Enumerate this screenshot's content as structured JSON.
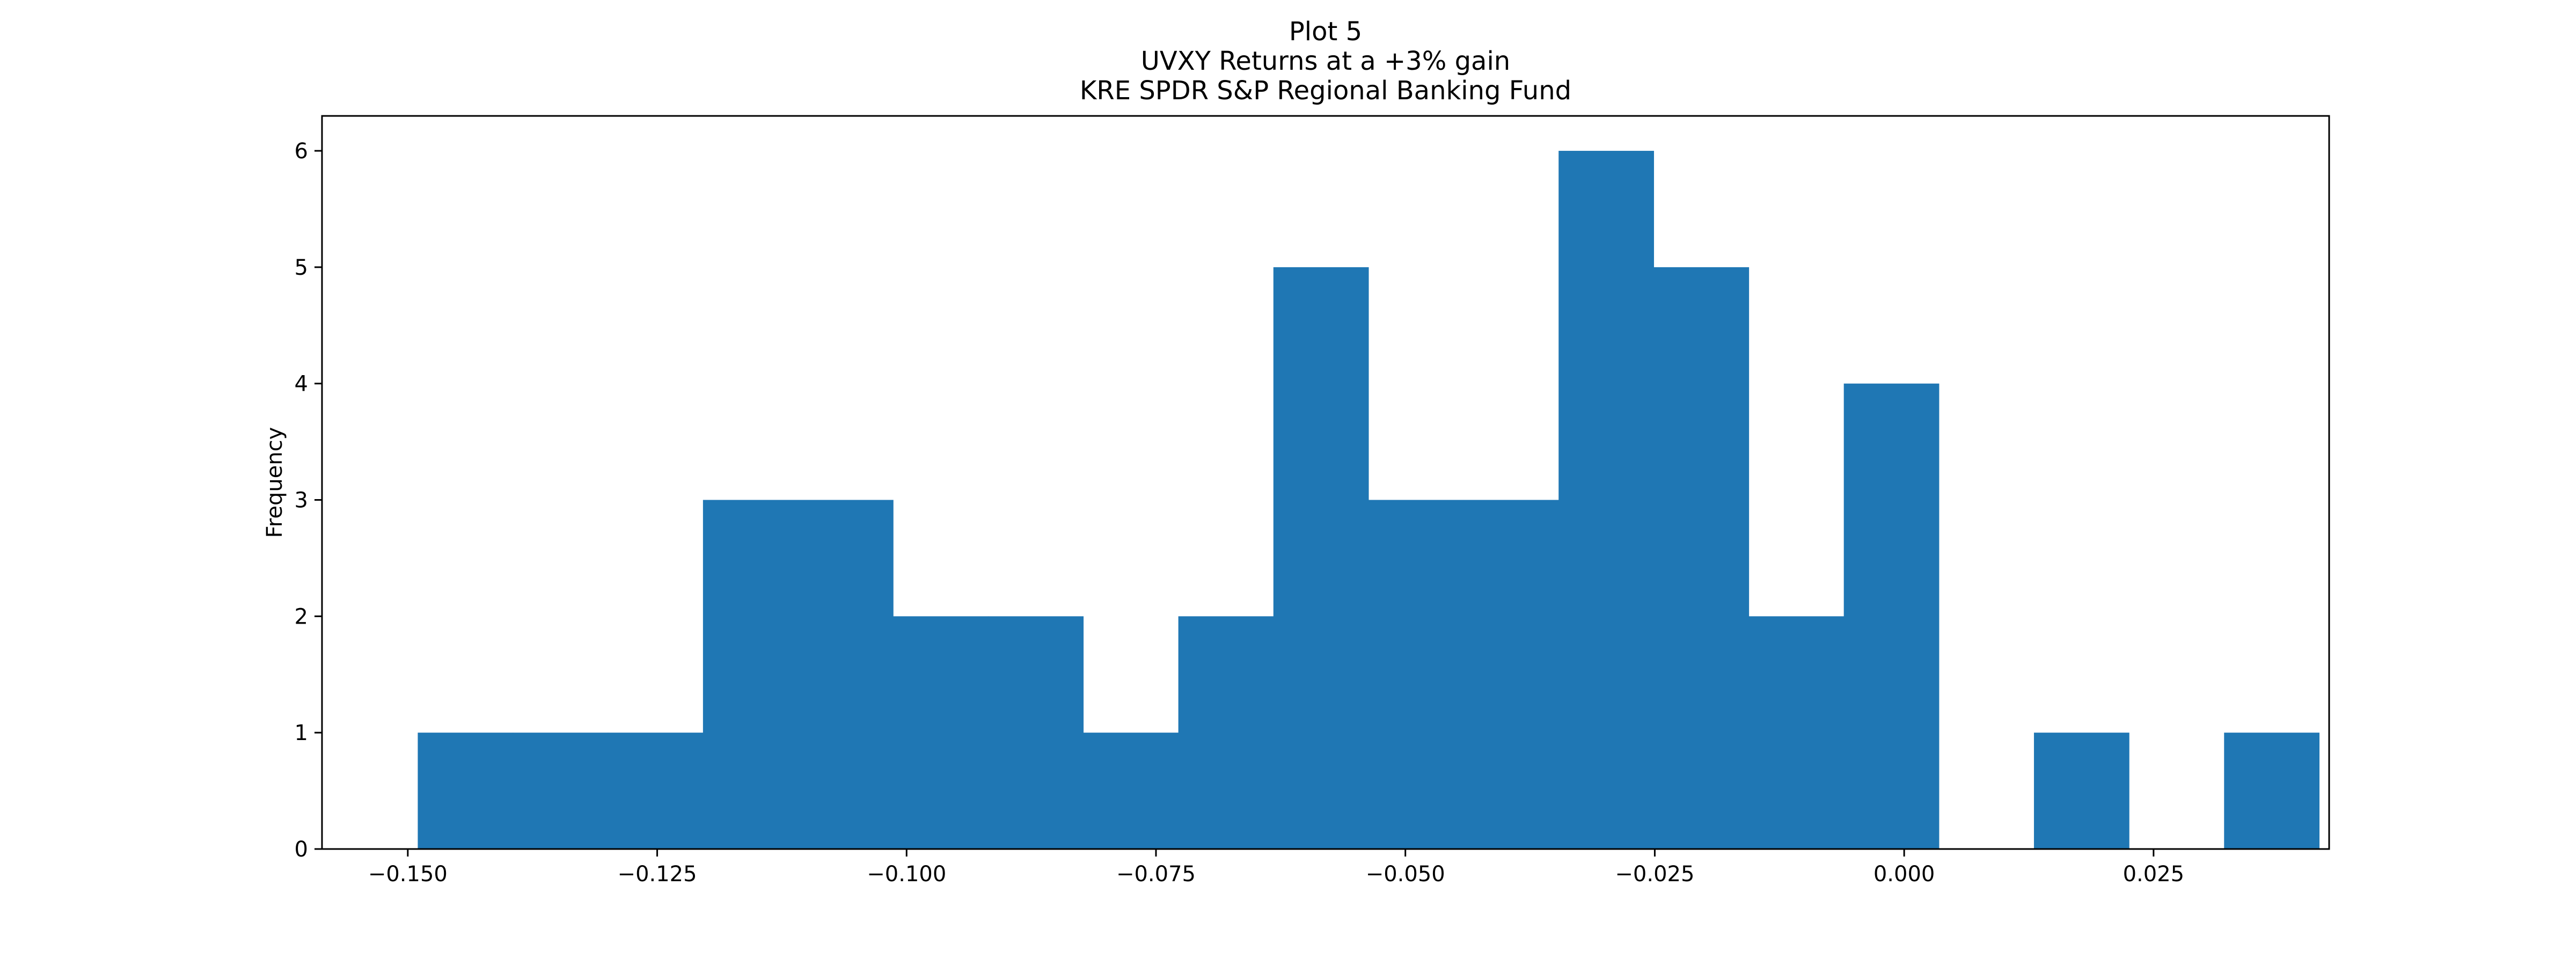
{
  "chart_data": {
    "type": "bar",
    "title_lines": [
      "Plot 5",
      "UVXY Returns at a +3% gain",
      "KRE SPDR S&P Regional Banking Fund"
    ],
    "xlabel": "",
    "ylabel": "Frequency",
    "xlim": [
      -0.1586,
      0.0426
    ],
    "ylim": [
      0,
      6.3
    ],
    "grid": false,
    "legend": "none",
    "bar_color": "#1f77b4",
    "bins": {
      "start": -0.149,
      "width": 0.00953,
      "counts": [
        1,
        1,
        1,
        3,
        3,
        2,
        2,
        1,
        2,
        5,
        3,
        3,
        6,
        5,
        2,
        4,
        0,
        1,
        0,
        1
      ]
    },
    "xticks": [
      {
        "value": -0.15,
        "label": "−0.150"
      },
      {
        "value": -0.125,
        "label": "−0.125"
      },
      {
        "value": -0.1,
        "label": "−0.100"
      },
      {
        "value": -0.075,
        "label": "−0.075"
      },
      {
        "value": -0.05,
        "label": "−0.050"
      },
      {
        "value": -0.025,
        "label": "−0.025"
      },
      {
        "value": 0.0,
        "label": "0.000"
      },
      {
        "value": 0.025,
        "label": "0.025"
      }
    ],
    "yticks": [
      {
        "value": 0,
        "label": "0"
      },
      {
        "value": 1,
        "label": "1"
      },
      {
        "value": 2,
        "label": "2"
      },
      {
        "value": 3,
        "label": "3"
      },
      {
        "value": 4,
        "label": "4"
      },
      {
        "value": 5,
        "label": "5"
      },
      {
        "value": 6,
        "label": "6"
      }
    ]
  }
}
